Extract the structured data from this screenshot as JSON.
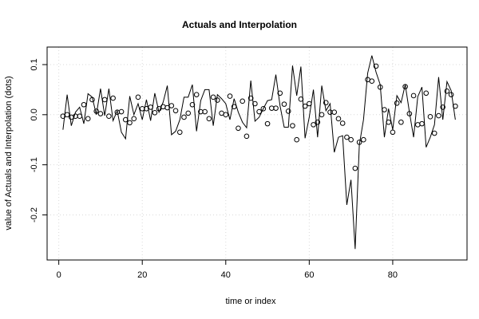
{
  "chart_data": {
    "type": "line",
    "title": "Actuals and Interpolation",
    "xlabel": "time or index",
    "ylabel": "value of Actuals and Interpolation (dots)",
    "xlim": [
      -2.8,
      97.8
    ],
    "ylim": [
      -0.29,
      0.135
    ],
    "xticks": [
      0,
      20,
      40,
      60,
      80
    ],
    "yticks": [
      -0.2,
      -0.1,
      0.0,
      0.1
    ],
    "ytick_labels": [
      "-0.2",
      "-0.1",
      "0.0",
      "0.1"
    ],
    "grid": true,
    "legend": "none",
    "series": [
      {
        "style": "line",
        "color": "#000000",
        "x": [
          1,
          2,
          3,
          4,
          5,
          6,
          7,
          8,
          9,
          10,
          11,
          12,
          13,
          14,
          15,
          16,
          17,
          18,
          19,
          20,
          21,
          22,
          23,
          24,
          25,
          26,
          27,
          28,
          29,
          30,
          31,
          32,
          33,
          34,
          35,
          36,
          37,
          38,
          39,
          40,
          41,
          42,
          43,
          44,
          45,
          46,
          47,
          48,
          49,
          50,
          51,
          52,
          53,
          54,
          55,
          56,
          57,
          58,
          59,
          60,
          61,
          62,
          63,
          64,
          65,
          66,
          67,
          68,
          69,
          70,
          71,
          72,
          73,
          74,
          75,
          76,
          77,
          78,
          79,
          80,
          81,
          82,
          83,
          84,
          85,
          86,
          87,
          88,
          89,
          90,
          91,
          92,
          93,
          94,
          95
        ],
        "y": [
          -0.03,
          0.04,
          -0.022,
          0.005,
          0.015,
          -0.018,
          0.042,
          0.035,
          0.0,
          0.052,
          -0.002,
          0.052,
          -0.012,
          0.008,
          -0.035,
          -0.048,
          0.037,
          0.0,
          0.022,
          -0.01,
          0.03,
          -0.012,
          0.043,
          0.005,
          0.025,
          0.058,
          -0.04,
          -0.033,
          -0.01,
          0.035,
          0.035,
          0.06,
          -0.033,
          0.028,
          0.05,
          0.05,
          -0.022,
          0.04,
          0.032,
          0.022,
          -0.01,
          0.032,
          0.005,
          -0.015,
          -0.026,
          0.068,
          -0.013,
          -0.005,
          0.012,
          0.028,
          0.03,
          0.08,
          0.018,
          -0.025,
          -0.025,
          0.098,
          0.038,
          0.096,
          -0.047,
          -0.005,
          0.05,
          -0.045,
          0.058,
          0.008,
          0.022,
          -0.075,
          -0.045,
          -0.042,
          -0.18,
          -0.13,
          -0.268,
          -0.06,
          -0.01,
          0.083,
          0.118,
          0.085,
          0.06,
          -0.045,
          0.012,
          -0.03,
          0.038,
          0.024,
          0.06,
          0.005,
          -0.045,
          0.036,
          0.055,
          -0.065,
          -0.045,
          -0.02,
          0.075,
          -0.01,
          0.066,
          0.048,
          -0.01
        ]
      },
      {
        "style": "dots",
        "color": "#000000",
        "x": [
          1,
          2,
          3,
          4,
          5,
          6,
          7,
          8,
          9,
          10,
          11,
          12,
          13,
          14,
          15,
          16,
          17,
          18,
          19,
          20,
          21,
          22,
          23,
          24,
          25,
          26,
          27,
          28,
          29,
          30,
          31,
          32,
          33,
          34,
          35,
          36,
          37,
          38,
          39,
          40,
          41,
          42,
          43,
          44,
          45,
          46,
          47,
          48,
          49,
          50,
          51,
          52,
          53,
          54,
          55,
          56,
          57,
          58,
          59,
          60,
          61,
          62,
          63,
          64,
          65,
          66,
          67,
          68,
          69,
          70,
          71,
          72,
          73,
          74,
          75,
          76,
          77,
          78,
          79,
          80,
          81,
          82,
          83,
          84,
          85,
          86,
          87,
          88,
          89,
          90,
          91,
          92,
          93,
          94,
          95
        ],
        "y": [
          -0.003,
          0.0,
          -0.005,
          -0.003,
          -0.003,
          0.02,
          -0.008,
          0.03,
          0.007,
          0.002,
          0.03,
          -0.003,
          0.033,
          0.005,
          0.006,
          -0.01,
          -0.016,
          -0.008,
          0.035,
          0.012,
          0.012,
          0.015,
          0.004,
          0.012,
          0.016,
          0.014,
          0.018,
          0.008,
          -0.035,
          -0.005,
          0.003,
          0.02,
          0.04,
          0.006,
          0.006,
          -0.008,
          0.035,
          0.029,
          0.003,
          0.0,
          0.037,
          0.016,
          -0.027,
          0.027,
          -0.043,
          0.033,
          0.022,
          0.006,
          0.012,
          -0.018,
          0.013,
          0.013,
          0.043,
          0.021,
          0.007,
          -0.022,
          -0.05,
          0.031,
          0.017,
          0.022,
          -0.02,
          -0.015,
          0.0,
          0.024,
          0.005,
          0.005,
          -0.008,
          -0.017,
          -0.045,
          -0.05,
          -0.107,
          -0.055,
          -0.05,
          0.07,
          0.067,
          0.097,
          0.055,
          0.01,
          -0.015,
          -0.035,
          0.023,
          -0.015,
          0.056,
          0.002,
          0.038,
          -0.02,
          -0.018,
          0.043,
          -0.004,
          -0.037,
          -0.002,
          0.015,
          0.047,
          0.04,
          0.017
        ]
      }
    ]
  }
}
